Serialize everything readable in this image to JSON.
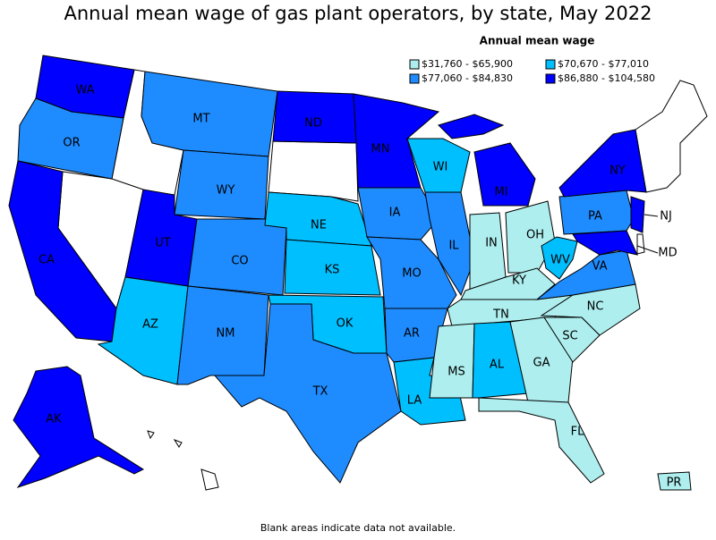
{
  "title": "Annual mean wage of gas plant operators, by state, May 2022",
  "legend": {
    "title": "Annual mean wage",
    "classes": [
      {
        "label": "$31,760 - $65,900",
        "color": "#aeeeee"
      },
      {
        "label": "$70,670 - $77,010",
        "color": "#00bfff"
      },
      {
        "label": "$77,060 - $84,830",
        "color": "#1e8cff"
      },
      {
        "label": "$86,880 - $104,580",
        "color": "#0000ff"
      }
    ]
  },
  "states": [
    {
      "label": "WA",
      "class": 3
    },
    {
      "label": "OR",
      "class": 2
    },
    {
      "label": "CA",
      "class": 3
    },
    {
      "label": "MT",
      "class": 2
    },
    {
      "label": "WY",
      "class": 2
    },
    {
      "label": "UT",
      "class": 3
    },
    {
      "label": "CO",
      "class": 2
    },
    {
      "label": "AZ",
      "class": 1
    },
    {
      "label": "NM",
      "class": 2
    },
    {
      "label": "ND",
      "class": 3
    },
    {
      "label": "NE",
      "class": 1
    },
    {
      "label": "KS",
      "class": 1
    },
    {
      "label": "OK",
      "class": 1
    },
    {
      "label": "TX",
      "class": 2
    },
    {
      "label": "MN",
      "class": 3
    },
    {
      "label": "IA",
      "class": 2
    },
    {
      "label": "MO",
      "class": 2
    },
    {
      "label": "AR",
      "class": 2
    },
    {
      "label": "LA",
      "class": 1
    },
    {
      "label": "WI",
      "class": 1
    },
    {
      "label": "IL",
      "class": 2
    },
    {
      "label": "MI",
      "class": 3
    },
    {
      "label": "IN",
      "class": 0
    },
    {
      "label": "OH",
      "class": 0
    },
    {
      "label": "KY",
      "class": 0
    },
    {
      "label": "TN",
      "class": 0
    },
    {
      "label": "MS",
      "class": 0
    },
    {
      "label": "AL",
      "class": 1
    },
    {
      "label": "GA",
      "class": 0
    },
    {
      "label": "FL",
      "class": 0
    },
    {
      "label": "SC",
      "class": 0
    },
    {
      "label": "NC",
      "class": 0
    },
    {
      "label": "VA",
      "class": 2
    },
    {
      "label": "WV",
      "class": 1
    },
    {
      "label": "PA",
      "class": 2
    },
    {
      "label": "NY",
      "class": 3
    },
    {
      "label": "NJ",
      "class": 3
    },
    {
      "label": "MD",
      "class": 3
    },
    {
      "label": "AK",
      "class": 3
    },
    {
      "label": "PR",
      "class": 0
    }
  ],
  "footnote": "Blank areas indicate data not available."
}
